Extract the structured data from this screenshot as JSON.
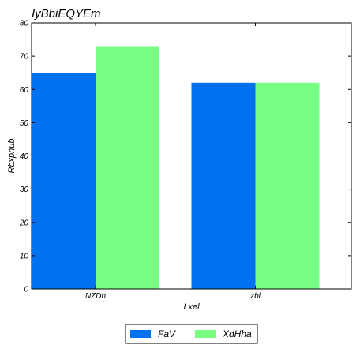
{
  "chart_data": {
    "type": "bar",
    "title": "IyBbiEQYEm",
    "xlabel": "I xel",
    "ylabel": "Rbxpnub",
    "categories": [
      "NZDh",
      "zbl"
    ],
    "series": [
      {
        "name": "FaV",
        "values": [
          65,
          62
        ],
        "color": "#0072f0"
      },
      {
        "name": "XdHha",
        "values": [
          73,
          62
        ],
        "color": "#77ff83"
      }
    ],
    "ylim": [
      0,
      80
    ],
    "yticks": [
      0,
      10,
      20,
      30,
      40,
      50,
      60,
      70,
      80
    ],
    "grid": false,
    "legend_position": "bottom-center"
  }
}
